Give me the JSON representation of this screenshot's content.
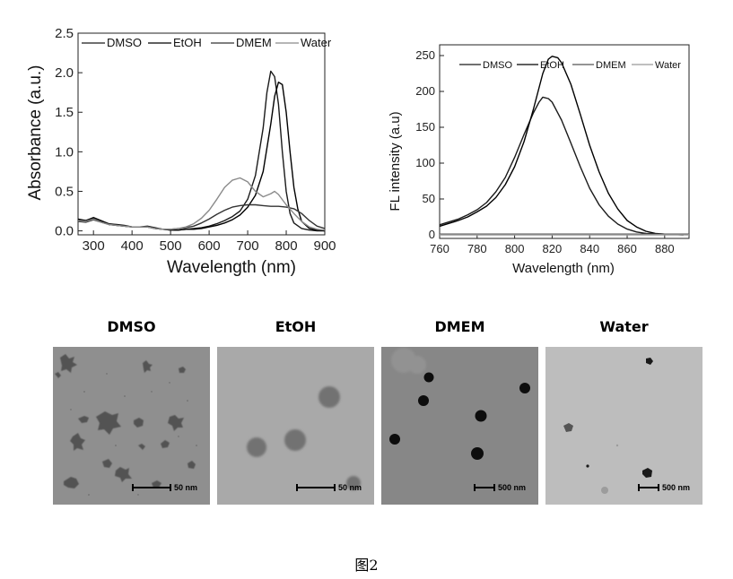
{
  "chart_data": [
    {
      "type": "line",
      "xlabel": "Wavelength (nm)",
      "ylabel": "Absorbance (a.u.)",
      "xlim": [
        260,
        900
      ],
      "ylim": [
        -0.05,
        2.5
      ],
      "xticks": [
        "300",
        "400",
        "500",
        "600",
        "700",
        "800",
        "900"
      ],
      "yticks": [
        "0.0",
        "0.5",
        "1.0",
        "1.5",
        "2.0",
        "2.5"
      ],
      "grid": false,
      "legend_position": "top",
      "series": [
        {
          "name": "DMSO",
          "color": "#1a1a1a",
          "x": [
            260,
            280,
            300,
            320,
            340,
            360,
            380,
            400,
            420,
            440,
            460,
            480,
            500,
            520,
            540,
            560,
            580,
            600,
            620,
            640,
            660,
            680,
            700,
            720,
            740,
            750,
            760,
            770,
            780,
            790,
            800,
            810,
            820,
            840,
            860,
            880,
            900
          ],
          "y": [
            0.14,
            0.13,
            0.17,
            0.13,
            0.09,
            0.08,
            0.07,
            0.05,
            0.05,
            0.06,
            0.04,
            0.02,
            0.01,
            0.01,
            0.02,
            0.03,
            0.04,
            0.06,
            0.09,
            0.13,
            0.18,
            0.25,
            0.4,
            0.7,
            1.3,
            1.75,
            2.02,
            1.95,
            1.6,
            1.0,
            0.5,
            0.22,
            0.1,
            0.03,
            0.01,
            0.0,
            0.0
          ]
        },
        {
          "name": "EtOH",
          "color": "#000000",
          "x": [
            260,
            280,
            300,
            320,
            340,
            360,
            380,
            400,
            420,
            440,
            460,
            480,
            500,
            520,
            540,
            560,
            580,
            600,
            620,
            640,
            660,
            680,
            700,
            720,
            740,
            760,
            770,
            780,
            790,
            800,
            810,
            820,
            830,
            840,
            860,
            880,
            900
          ],
          "y": [
            0.15,
            0.13,
            0.16,
            0.12,
            0.08,
            0.07,
            0.06,
            0.05,
            0.05,
            0.05,
            0.03,
            0.02,
            0.01,
            0.01,
            0.02,
            0.02,
            0.03,
            0.05,
            0.07,
            0.1,
            0.14,
            0.2,
            0.3,
            0.45,
            0.75,
            1.35,
            1.7,
            1.88,
            1.85,
            1.5,
            1.0,
            0.55,
            0.28,
            0.12,
            0.03,
            0.01,
            0.0
          ]
        },
        {
          "name": "DMEM",
          "color": "#333333",
          "x": [
            260,
            280,
            300,
            320,
            340,
            360,
            380,
            400,
            420,
            440,
            460,
            480,
            500,
            520,
            540,
            560,
            580,
            600,
            620,
            640,
            660,
            680,
            700,
            720,
            740,
            760,
            780,
            800,
            820,
            840,
            860,
            880,
            900
          ],
          "y": [
            0.12,
            0.11,
            0.14,
            0.11,
            0.08,
            0.07,
            0.06,
            0.05,
            0.05,
            0.05,
            0.03,
            0.02,
            0.02,
            0.03,
            0.04,
            0.06,
            0.1,
            0.15,
            0.21,
            0.26,
            0.3,
            0.32,
            0.33,
            0.33,
            0.32,
            0.31,
            0.31,
            0.3,
            0.28,
            0.22,
            0.13,
            0.06,
            0.03
          ]
        },
        {
          "name": "Water",
          "color": "#8a8a8a",
          "x": [
            260,
            280,
            300,
            320,
            340,
            360,
            380,
            400,
            420,
            440,
            460,
            480,
            500,
            520,
            540,
            560,
            580,
            600,
            620,
            640,
            660,
            680,
            700,
            720,
            740,
            760,
            770,
            780,
            800,
            820,
            840,
            860,
            880,
            900
          ],
          "y": [
            0.13,
            0.12,
            0.15,
            0.11,
            0.08,
            0.07,
            0.06,
            0.05,
            0.05,
            0.05,
            0.03,
            0.02,
            0.02,
            0.03,
            0.05,
            0.09,
            0.16,
            0.26,
            0.4,
            0.55,
            0.64,
            0.67,
            0.62,
            0.5,
            0.43,
            0.47,
            0.5,
            0.46,
            0.33,
            0.22,
            0.12,
            0.05,
            0.02,
            0.01
          ]
        }
      ]
    },
    {
      "type": "line",
      "xlabel": "Wavelength (nm)",
      "ylabel": "FL intensity (a.u)",
      "xlim": [
        760,
        893
      ],
      "ylim": [
        -5,
        265
      ],
      "xticks": [
        "760",
        "780",
        "800",
        "820",
        "840",
        "860",
        "880"
      ],
      "yticks": [
        "0",
        "50",
        "100",
        "150",
        "200",
        "250"
      ],
      "grid": false,
      "legend_position": "top",
      "series": [
        {
          "name": "DMSO",
          "color": "#1a1a1a",
          "x": [
            760,
            765,
            770,
            775,
            780,
            785,
            790,
            795,
            800,
            805,
            810,
            813,
            815,
            818,
            820,
            825,
            830,
            835,
            840,
            845,
            850,
            855,
            860,
            865,
            870,
            880,
            890
          ],
          "y": [
            14,
            18,
            22,
            28,
            35,
            45,
            60,
            80,
            108,
            140,
            170,
            185,
            192,
            190,
            185,
            160,
            128,
            95,
            65,
            42,
            26,
            15,
            8,
            4,
            2,
            1,
            0
          ]
        },
        {
          "name": "EtOH",
          "color": "#000000",
          "x": [
            760,
            765,
            770,
            775,
            780,
            785,
            790,
            795,
            800,
            805,
            810,
            815,
            818,
            820,
            823,
            825,
            830,
            835,
            840,
            845,
            850,
            855,
            860,
            865,
            870,
            875,
            880,
            890
          ],
          "y": [
            12,
            16,
            20,
            25,
            32,
            40,
            52,
            70,
            95,
            130,
            175,
            225,
            245,
            249,
            247,
            240,
            210,
            168,
            125,
            88,
            58,
            36,
            20,
            11,
            5,
            2,
            1,
            0
          ]
        },
        {
          "name": "DMEM",
          "color": "#555555",
          "x": [
            760,
            800,
            840,
            893
          ],
          "y": [
            1,
            1,
            1,
            1
          ]
        },
        {
          "name": "Water",
          "color": "#999999",
          "x": [
            760,
            800,
            840,
            893
          ],
          "y": [
            0,
            0,
            0,
            0
          ]
        }
      ]
    }
  ],
  "tem_panels": [
    {
      "label": "DMSO",
      "scalebar": "50 nm"
    },
    {
      "label": "EtOH",
      "scalebar": "50 nm"
    },
    {
      "label": "DMEM",
      "scalebar": "500 nm"
    },
    {
      "label": "Water",
      "scalebar": "500 nm"
    }
  ],
  "caption": "图2"
}
